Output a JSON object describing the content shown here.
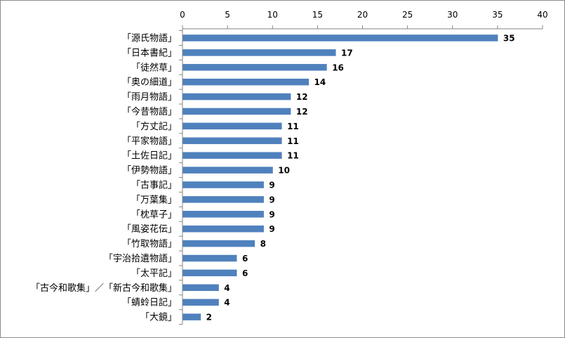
{
  "chart_data": {
    "type": "bar",
    "orientation": "horizontal",
    "categories": [
      "「源氏物語」",
      "「日本書紀」",
      "「徒然草」",
      "「奥の細道」",
      "「雨月物語」",
      "「今昔物語」",
      "「方丈記」",
      "「平家物語」",
      "「土佐日記」",
      "「伊勢物語」",
      "「古事記」",
      "「万葉集」",
      "「枕草子」",
      "「風姿花伝」",
      "「竹取物語」",
      "「宇治拾遺物語」",
      "「太平記」",
      "「古今和歌集」／「新古今和歌集」",
      "「蜻蛉日記」",
      "「大鏡」"
    ],
    "values": [
      35,
      17,
      16,
      14,
      12,
      12,
      11,
      11,
      11,
      10,
      9,
      9,
      9,
      9,
      8,
      6,
      6,
      4,
      4,
      2
    ],
    "xlim": [
      0,
      40
    ],
    "xticks": [
      0,
      5,
      10,
      15,
      20,
      25,
      30,
      35,
      40
    ],
    "x_axis_position": "top",
    "grid": false,
    "legend": "none",
    "data_labels": true,
    "bar_color": "#4f81bd"
  }
}
